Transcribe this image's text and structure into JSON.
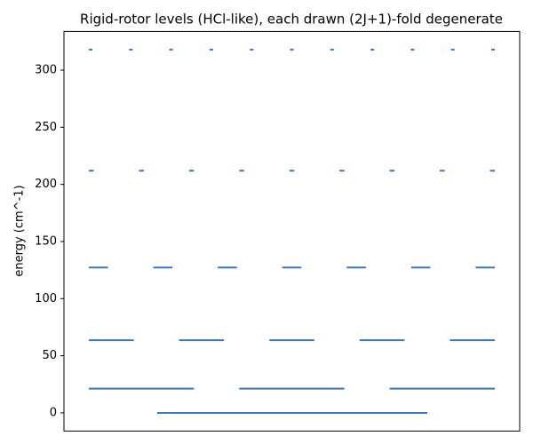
{
  "chart_data": {
    "type": "levels",
    "title": "Rigid-rotor levels (HCl-like), each drawn (2J+1)-fold degenerate",
    "y_label": "energy (cm^-1)",
    "values": [
      0,
      21.2,
      63.6,
      127.2,
      212,
      318
    ],
    "degeneracy": [
      1,
      3,
      5,
      7,
      9,
      11
    ],
    "color": "#3b78b5",
    "ylim": [
      -15.9,
      333.9
    ],
    "yticks": [
      0,
      50,
      100,
      150,
      200,
      250,
      300
    ]
  }
}
